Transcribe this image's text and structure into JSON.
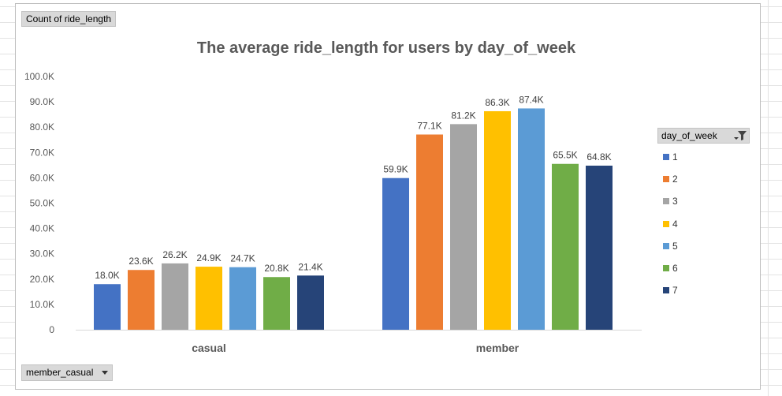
{
  "pivot": {
    "values_field": "Count of ride_length",
    "axis_field": "member_casual",
    "legend_field": "day_of_week"
  },
  "chart_data": {
    "type": "bar",
    "title": "The average ride_length for users by day_of_week",
    "categories": [
      "casual",
      "member"
    ],
    "series": [
      {
        "name": "1",
        "color": "#4472C4",
        "values": [
          18.0,
          59.9
        ],
        "labels": [
          "18.0K",
          "59.9K"
        ]
      },
      {
        "name": "2",
        "color": "#ED7D31",
        "values": [
          23.6,
          77.1
        ],
        "labels": [
          "23.6K",
          "77.1K"
        ]
      },
      {
        "name": "3",
        "color": "#A5A5A5",
        "values": [
          26.2,
          81.2
        ],
        "labels": [
          "26.2K",
          "81.2K"
        ]
      },
      {
        "name": "4",
        "color": "#FFC000",
        "values": [
          24.9,
          86.3
        ],
        "labels": [
          "24.9K",
          "86.3K"
        ]
      },
      {
        "name": "5",
        "color": "#5B9BD5",
        "values": [
          24.7,
          87.4
        ],
        "labels": [
          "24.7K",
          "87.4K"
        ]
      },
      {
        "name": "6",
        "color": "#70AD47",
        "values": [
          20.8,
          65.5
        ],
        "labels": [
          "20.8K",
          "65.5K"
        ]
      },
      {
        "name": "7",
        "color": "#264478",
        "values": [
          21.4,
          64.8
        ],
        "labels": [
          "21.4K",
          "64.8K"
        ]
      }
    ],
    "yticks": [
      "0",
      "10.0K",
      "20.0K",
      "30.0K",
      "40.0K",
      "50.0K",
      "60.0K",
      "70.0K",
      "80.0K",
      "90.0K",
      "100.0K"
    ],
    "ylim": [
      0,
      100
    ],
    "xlabel": "",
    "ylabel": "",
    "legend": "right",
    "grid": false
  }
}
